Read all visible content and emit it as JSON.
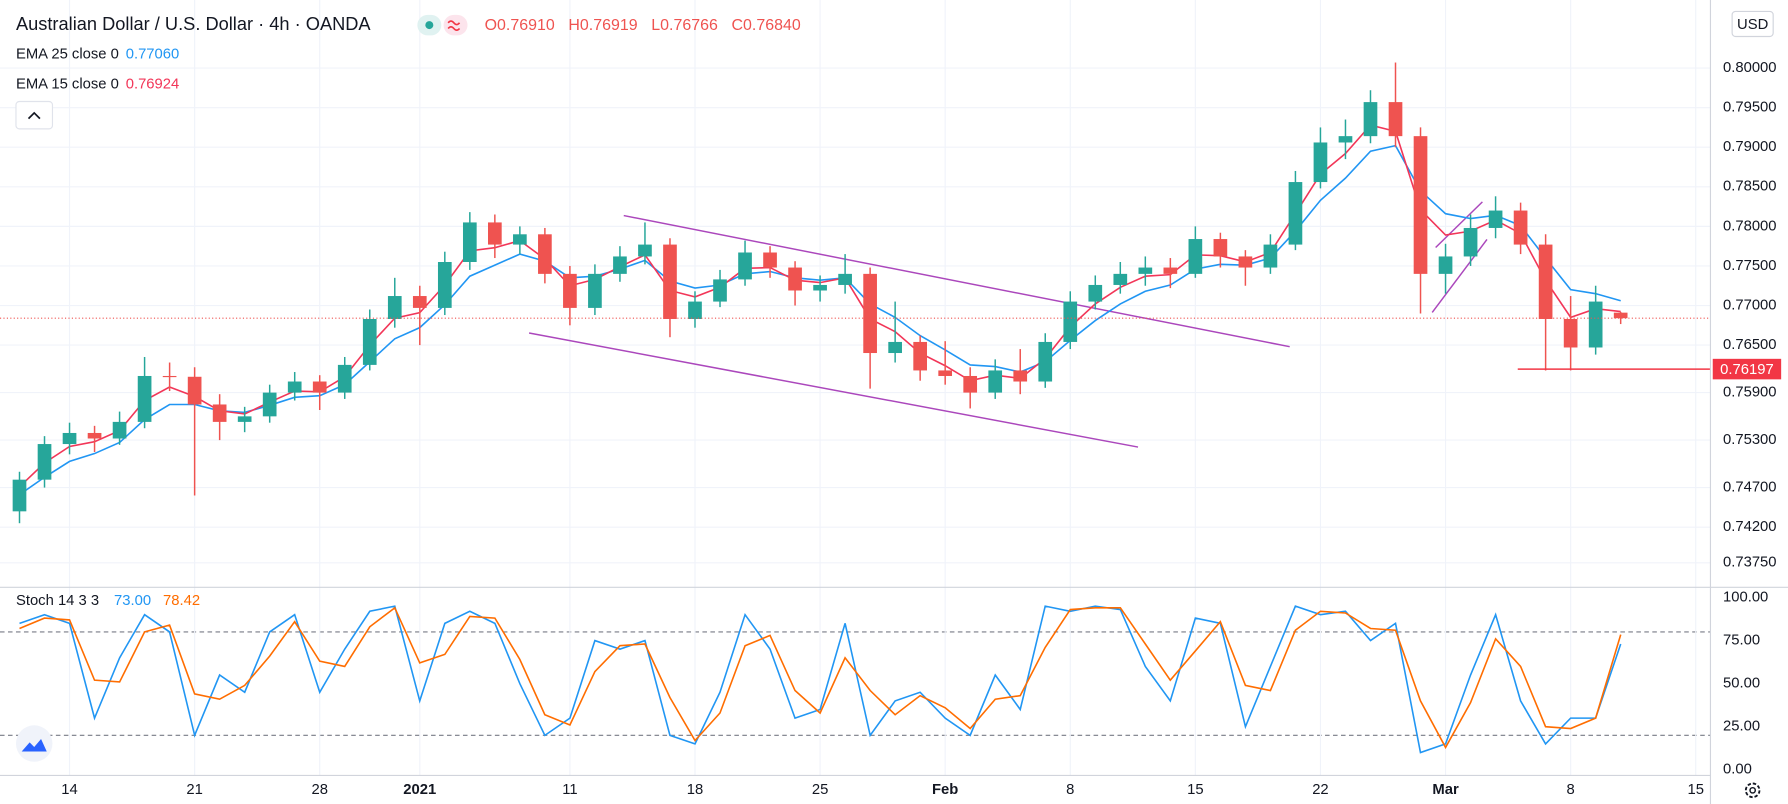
{
  "header": {
    "title": "Australian Dollar / U.S. Dollar · 4h · OANDA",
    "ohlc": [
      {
        "label": "O",
        "value": "0.76910"
      },
      {
        "label": "H",
        "value": "0.76919"
      },
      {
        "label": "L",
        "value": "0.76766"
      },
      {
        "label": "C",
        "value": "0.76840"
      }
    ]
  },
  "chart_data": [
    {
      "type": "candlestick",
      "currency": "USD",
      "categories": [
        null,
        null,
        "14",
        null,
        null,
        null,
        null,
        "21",
        null,
        null,
        null,
        null,
        "28",
        null,
        null,
        null,
        "2021",
        null,
        null,
        null,
        null,
        null,
        "11",
        null,
        null,
        null,
        null,
        "18",
        null,
        null,
        null,
        null,
        "25",
        null,
        null,
        null,
        null,
        "Feb",
        null,
        null,
        null,
        null,
        "8",
        null,
        null,
        null,
        null,
        "15",
        null,
        null,
        null,
        null,
        "22",
        null,
        null,
        null,
        null,
        "Mar",
        null,
        null,
        null,
        null,
        "8",
        null,
        null,
        null,
        null,
        "15"
      ],
      "open": [
        0.744,
        0.748,
        0.7525,
        0.7539,
        0.7532,
        0.7553,
        0.7611,
        0.761,
        0.7575,
        0.7553,
        0.756,
        0.759,
        0.7604,
        0.759,
        0.7625,
        0.7683,
        0.7712,
        0.7697,
        0.7755,
        0.7805,
        0.7777,
        0.779,
        0.774,
        0.7697,
        0.774,
        0.7762,
        0.7777,
        0.7683,
        0.7705,
        0.7733,
        0.7767,
        0.7748,
        0.7719,
        0.7726,
        0.774,
        0.764,
        0.7654,
        0.7618,
        0.7611,
        0.759,
        0.7618,
        0.7604,
        0.7654,
        0.7705,
        0.7726,
        0.774,
        0.7748,
        0.774,
        0.7784,
        0.7762,
        0.7748,
        0.7777,
        0.7856,
        0.7906,
        0.7914,
        0.7957,
        0.7914,
        0.774,
        0.7762,
        0.7798,
        0.782,
        0.7777,
        0.7683,
        0.7647,
        0.7691,
        null,
        null,
        null
      ],
      "high": [
        0.749,
        0.7535,
        0.7552,
        0.7548,
        0.7566,
        0.7635,
        0.7628,
        0.7622,
        0.7588,
        0.7572,
        0.76,
        0.7616,
        0.7612,
        0.7635,
        0.7695,
        0.7735,
        0.7725,
        0.7768,
        0.7818,
        0.7815,
        0.78,
        0.7798,
        0.775,
        0.7752,
        0.7775,
        0.7805,
        0.7785,
        0.7718,
        0.7745,
        0.7782,
        0.7775,
        0.7756,
        0.7738,
        0.7765,
        0.7748,
        0.7705,
        0.7662,
        0.7655,
        0.7622,
        0.7632,
        0.7645,
        0.7665,
        0.7718,
        0.7738,
        0.7755,
        0.7762,
        0.776,
        0.78,
        0.7792,
        0.777,
        0.779,
        0.787,
        0.7925,
        0.7935,
        0.7972,
        0.8007,
        0.7925,
        0.7778,
        0.7815,
        0.7838,
        0.783,
        0.779,
        0.7712,
        0.7725,
        0.76919,
        null,
        null,
        null
      ],
      "low": [
        0.7425,
        0.747,
        0.7512,
        0.7515,
        0.7524,
        0.7545,
        0.7592,
        0.746,
        0.753,
        0.754,
        0.7552,
        0.758,
        0.7568,
        0.7582,
        0.7618,
        0.7672,
        0.765,
        0.7688,
        0.7745,
        0.776,
        0.7765,
        0.7728,
        0.7675,
        0.7688,
        0.773,
        0.7752,
        0.766,
        0.7672,
        0.7698,
        0.7725,
        0.7735,
        0.77,
        0.7705,
        0.7715,
        0.7595,
        0.7628,
        0.7605,
        0.76,
        0.757,
        0.7582,
        0.7588,
        0.7596,
        0.7645,
        0.7695,
        0.7715,
        0.7725,
        0.7722,
        0.7735,
        0.7748,
        0.7725,
        0.774,
        0.777,
        0.7848,
        0.7885,
        0.7905,
        0.79,
        0.769,
        0.7715,
        0.775,
        0.7785,
        0.7765,
        0.7618,
        0.7618,
        0.7638,
        0.76766,
        null,
        null,
        null
      ],
      "close": [
        0.748,
        0.7525,
        0.7539,
        0.7532,
        0.7553,
        0.7611,
        0.761,
        0.7575,
        0.7553,
        0.756,
        0.759,
        0.7604,
        0.759,
        0.7625,
        0.7683,
        0.7712,
        0.7697,
        0.7755,
        0.7805,
        0.7777,
        0.779,
        0.774,
        0.7697,
        0.774,
        0.7762,
        0.7777,
        0.7683,
        0.7705,
        0.7733,
        0.7767,
        0.7748,
        0.7719,
        0.7726,
        0.774,
        0.764,
        0.7654,
        0.7618,
        0.7611,
        0.759,
        0.7618,
        0.7604,
        0.7654,
        0.7705,
        0.7726,
        0.774,
        0.7748,
        0.774,
        0.7784,
        0.7762,
        0.7748,
        0.7777,
        0.7856,
        0.7906,
        0.7914,
        0.7957,
        0.7914,
        0.774,
        0.7762,
        0.7798,
        0.782,
        0.7777,
        0.7683,
        0.7647,
        0.7705,
        0.7684,
        null,
        null,
        null
      ],
      "up_color": "#26a69a",
      "down_color": "#ef5350",
      "series": [
        {
          "name": "EMA 25 close 0",
          "last_label": "0.77060",
          "color": "#2196f3",
          "values": [
            0.7461,
            0.7483,
            0.7503,
            0.7513,
            0.7527,
            0.7556,
            0.7575,
            0.7575,
            0.7567,
            0.7565,
            0.7574,
            0.7584,
            0.7586,
            0.76,
            0.7629,
            0.7658,
            0.7672,
            0.7701,
            0.7737,
            0.7751,
            0.7765,
            0.7756,
            0.7735,
            0.7737,
            0.7746,
            0.7757,
            0.7731,
            0.7722,
            0.7726,
            0.774,
            0.7743,
            0.7735,
            0.7732,
            0.7735,
            0.7702,
            0.7685,
            0.7662,
            0.7644,
            0.7625,
            0.7623,
            0.7616,
            0.7629,
            0.7656,
            0.7681,
            0.7702,
            0.7718,
            0.7726,
            0.7746,
            0.7752,
            0.7751,
            0.776,
            0.7794,
            0.7833,
            0.7861,
            0.7895,
            0.7902,
            0.7845,
            0.7816,
            0.781,
            0.7814,
            0.7801,
            0.776,
            0.772,
            0.7715,
            0.7706,
            null,
            null,
            null
          ]
        },
        {
          "name": "EMA 15 close 0",
          "last_label": "0.76924",
          "color": "#f23658",
          "values": [
            0.7471,
            0.7501,
            0.7522,
            0.7528,
            0.7542,
            0.758,
            0.7597,
            0.7585,
            0.7567,
            0.7563,
            0.7578,
            0.7592,
            0.7591,
            0.761,
            0.765,
            0.7684,
            0.7691,
            0.7726,
            0.7769,
            0.7773,
            0.7782,
            0.7759,
            0.7725,
            0.7733,
            0.7749,
            0.7764,
            0.7719,
            0.7711,
            0.7723,
            0.7747,
            0.7748,
            0.7732,
            0.7729,
            0.7735,
            0.7683,
            0.7667,
            0.764,
            0.7624,
            0.7605,
            0.7612,
            0.7608,
            0.7633,
            0.7673,
            0.7702,
            0.7723,
            0.7737,
            0.7739,
            0.7764,
            0.7763,
            0.7755,
            0.7767,
            0.7816,
            0.7866,
            0.7892,
            0.7928,
            0.792,
            0.7821,
            0.7789,
            0.7794,
            0.7808,
            0.7791,
            0.7732,
            0.7685,
            0.7696,
            0.76924,
            null,
            null,
            null
          ]
        }
      ],
      "ylim": [
        0.7344,
        0.8086
      ],
      "yticks": [
        {
          "value": 0.8,
          "label": "0.80000"
        },
        {
          "value": 0.795,
          "label": "0.79500"
        },
        {
          "value": 0.79,
          "label": "0.79000"
        },
        {
          "value": 0.785,
          "label": "0.78500"
        },
        {
          "value": 0.78,
          "label": "0.78000"
        },
        {
          "value": 0.775,
          "label": "0.77500"
        },
        {
          "value": 0.77,
          "label": "0.77000"
        },
        {
          "value": 0.765,
          "label": "0.76500"
        },
        {
          "value": 0.759,
          "label": "0.75900"
        },
        {
          "value": 0.753,
          "label": "0.75300"
        },
        {
          "value": 0.747,
          "label": "0.74700"
        },
        {
          "value": 0.742,
          "label": "0.74200"
        },
        {
          "value": 0.7375,
          "label": "0.73750"
        }
      ],
      "price_line": 0.76197,
      "price_line_color": "#f23645",
      "grid": true
    },
    {
      "type": "line",
      "title": "Stoch 14 3 3",
      "series": [
        {
          "color": "#2196f3",
          "last_label": "73.00",
          "values": [
            85,
            90,
            85,
            30,
            65,
            90,
            80,
            20,
            55,
            45,
            80,
            90,
            45,
            70,
            92,
            95,
            40,
            85,
            92,
            85,
            50,
            20,
            30,
            75,
            70,
            75,
            20,
            15,
            45,
            90,
            70,
            30,
            35,
            85,
            20,
            40,
            45,
            30,
            20,
            55,
            35,
            95,
            92,
            95,
            93,
            60,
            40,
            88,
            85,
            25,
            60,
            95,
            90,
            92,
            75,
            85,
            10,
            15,
            55,
            90,
            40,
            15,
            30,
            30,
            73,
            null,
            null,
            null
          ]
        },
        {
          "color": "#ff6d00",
          "last_label": "78.42",
          "values": [
            82,
            88,
            87,
            52,
            51,
            80,
            84,
            44,
            41,
            49,
            66,
            86,
            63,
            60,
            83,
            94,
            62,
            67,
            89,
            88,
            64,
            32,
            26,
            57,
            72,
            73,
            42,
            17,
            33,
            72,
            78,
            46,
            33,
            65,
            46,
            32,
            43,
            36,
            24,
            41,
            43,
            71,
            93,
            94,
            94,
            73,
            52,
            69,
            86,
            49,
            46,
            81,
            92,
            91,
            82,
            81,
            40,
            13,
            39,
            76,
            60,
            25,
            24,
            30,
            78.42,
            null,
            null,
            null
          ]
        }
      ],
      "ylim": [
        -3.3,
        105.9
      ],
      "yticks": [
        {
          "value": 100,
          "label": "100.00"
        },
        {
          "value": 75,
          "label": "75.00"
        },
        {
          "value": 50,
          "label": "50.00"
        },
        {
          "value": 25,
          "label": "25.00"
        },
        {
          "value": 0,
          "label": "0.00"
        }
      ],
      "bands": [
        80,
        20
      ]
    }
  ]
}
